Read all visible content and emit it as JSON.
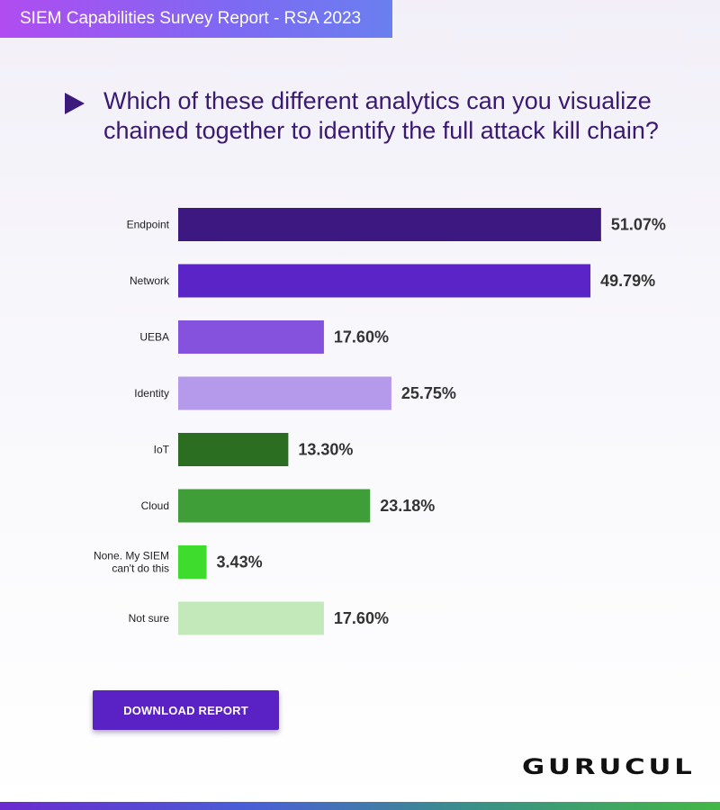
{
  "header": {
    "title": "SIEM Capabilities Survey Report - RSA 2023"
  },
  "question": "Which of these different analytics can you visualize chained together to identify the full attack kill chain?",
  "download_label": "DOWNLOAD REPORT",
  "logo_text": "GURUCUL",
  "chart_data": {
    "type": "bar",
    "orientation": "horizontal",
    "title": "",
    "xlabel": "",
    "ylabel": "",
    "xlim": [
      0,
      55
    ],
    "grid": false,
    "categories": [
      "Endpoint",
      "Network",
      "UEBA",
      "Identity",
      "IoT",
      "Cloud",
      "None. My SIEM can't do this",
      "Not sure"
    ],
    "category_lines": [
      [
        "Endpoint"
      ],
      [
        "Network"
      ],
      [
        "UEBA"
      ],
      [
        "Identity"
      ],
      [
        "IoT"
      ],
      [
        "Cloud"
      ],
      [
        "None. My SIEM",
        "can't do this"
      ],
      [
        "Not sure"
      ]
    ],
    "values": [
      51.07,
      49.79,
      17.6,
      25.75,
      13.3,
      23.18,
      3.43,
      17.6
    ],
    "value_labels": [
      "51.07%",
      "49.79%",
      "17.60%",
      "25.75%",
      "13.30%",
      "23.18%",
      "3.43%",
      "17.60%"
    ],
    "colors": [
      "#3d1880",
      "#5b24c6",
      "#8552de",
      "#b599ea",
      "#2b6e22",
      "#3f9e38",
      "#3ddc2d",
      "#c3e9bb"
    ]
  }
}
